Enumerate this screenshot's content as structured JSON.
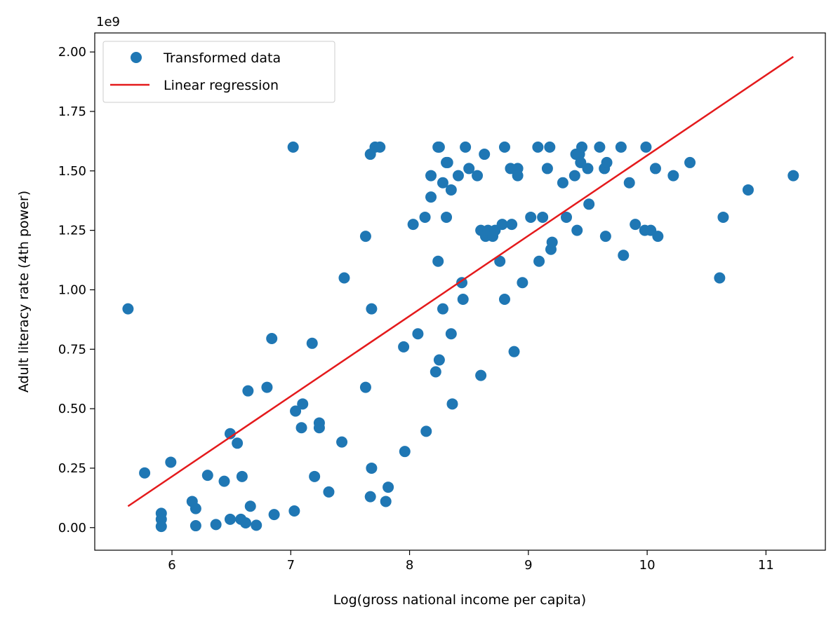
{
  "chart_data": {
    "type": "scatter",
    "title": "",
    "xlabel": "Log(gross national income per capita)",
    "ylabel": "Adult literacy rate (4th power)",
    "y_offset_text": "1e9",
    "xlim": [
      5.35,
      11.5
    ],
    "ylim": [
      -0.095,
      2.08
    ],
    "y_multiplier": 1000000000,
    "x_ticks": [
      6,
      7,
      8,
      9,
      10,
      11
    ],
    "x_tick_labels": [
      "6",
      "7",
      "8",
      "9",
      "10",
      "11"
    ],
    "y_ticks": [
      0.0,
      0.25,
      0.5,
      0.75,
      1.0,
      1.25,
      1.5,
      1.75,
      2.0
    ],
    "y_tick_labels": [
      "0.00",
      "0.25",
      "0.50",
      "0.75",
      "1.00",
      "1.25",
      "1.50",
      "1.75",
      "2.00"
    ],
    "grid": false,
    "legend_position": "top-left",
    "series": [
      {
        "name": "Transformed data",
        "kind": "scatter",
        "color": "#1f77b4",
        "points": [
          [
            5.63,
            0.92
          ],
          [
            5.77,
            0.23
          ],
          [
            5.91,
            0.06
          ],
          [
            5.91,
            0.035
          ],
          [
            5.91,
            0.005
          ],
          [
            5.99,
            0.275
          ],
          [
            6.17,
            0.11
          ],
          [
            6.2,
            0.08
          ],
          [
            6.2,
            0.008
          ],
          [
            6.3,
            0.22
          ],
          [
            6.37,
            0.013
          ],
          [
            6.44,
            0.195
          ],
          [
            6.49,
            0.395
          ],
          [
            6.49,
            0.035
          ],
          [
            6.55,
            0.355
          ],
          [
            6.58,
            0.035
          ],
          [
            6.59,
            0.215
          ],
          [
            6.62,
            0.02
          ],
          [
            6.64,
            0.575
          ],
          [
            6.66,
            0.09
          ],
          [
            6.71,
            0.01
          ],
          [
            6.8,
            0.59
          ],
          [
            6.84,
            0.795
          ],
          [
            6.86,
            0.055
          ],
          [
            7.02,
            1.6
          ],
          [
            7.03,
            0.07
          ],
          [
            7.04,
            0.49
          ],
          [
            7.09,
            0.42
          ],
          [
            7.1,
            0.52
          ],
          [
            7.18,
            0.775
          ],
          [
            7.2,
            0.215
          ],
          [
            7.24,
            0.44
          ],
          [
            7.24,
            0.42
          ],
          [
            7.32,
            0.15
          ],
          [
            7.43,
            0.36
          ],
          [
            7.45,
            1.05
          ],
          [
            7.63,
            1.225
          ],
          [
            7.63,
            0.59
          ],
          [
            7.67,
            1.57
          ],
          [
            7.67,
            0.13
          ],
          [
            7.68,
            0.92
          ],
          [
            7.68,
            0.25
          ],
          [
            7.71,
            1.6
          ],
          [
            7.75,
            1.6
          ],
          [
            7.8,
            0.11
          ],
          [
            7.82,
            0.17
          ],
          [
            7.95,
            0.76
          ],
          [
            7.96,
            0.32
          ],
          [
            8.03,
            1.275
          ],
          [
            8.07,
            0.815
          ],
          [
            8.13,
            1.305
          ],
          [
            8.14,
            0.405
          ],
          [
            8.18,
            1.48
          ],
          [
            8.18,
            1.39
          ],
          [
            8.22,
            0.655
          ],
          [
            8.24,
            1.12
          ],
          [
            8.24,
            1.6
          ],
          [
            8.25,
            1.6
          ],
          [
            8.25,
            0.705
          ],
          [
            8.28,
            1.45
          ],
          [
            8.28,
            0.92
          ],
          [
            8.31,
            1.535
          ],
          [
            8.31,
            1.305
          ],
          [
            8.32,
            1.535
          ],
          [
            8.35,
            1.42
          ],
          [
            8.35,
            0.815
          ],
          [
            8.36,
            0.52
          ],
          [
            8.41,
            1.48
          ],
          [
            8.44,
            1.03
          ],
          [
            8.45,
            0.96
          ],
          [
            8.47,
            1.6
          ],
          [
            8.5,
            1.51
          ],
          [
            8.57,
            1.48
          ],
          [
            8.6,
            1.25
          ],
          [
            8.6,
            0.64
          ],
          [
            8.63,
            1.57
          ],
          [
            8.64,
            1.225
          ],
          [
            8.66,
            1.25
          ],
          [
            8.7,
            1.225
          ],
          [
            8.72,
            1.25
          ],
          [
            8.76,
            1.12
          ],
          [
            8.78,
            1.275
          ],
          [
            8.8,
            1.6
          ],
          [
            8.8,
            0.96
          ],
          [
            8.85,
            1.51
          ],
          [
            8.86,
            1.275
          ],
          [
            8.88,
            0.74
          ],
          [
            8.91,
            1.51
          ],
          [
            8.91,
            1.48
          ],
          [
            8.95,
            1.03
          ],
          [
            9.02,
            1.305
          ],
          [
            9.08,
            1.6
          ],
          [
            9.09,
            1.12
          ],
          [
            9.12,
            1.305
          ],
          [
            9.16,
            1.51
          ],
          [
            9.18,
            1.6
          ],
          [
            9.19,
            1.17
          ],
          [
            9.2,
            1.2
          ],
          [
            9.29,
            1.45
          ],
          [
            9.32,
            1.305
          ],
          [
            9.39,
            1.48
          ],
          [
            9.4,
            1.57
          ],
          [
            9.41,
            1.25
          ],
          [
            9.43,
            1.57
          ],
          [
            9.44,
            1.535
          ],
          [
            9.45,
            1.6
          ],
          [
            9.5,
            1.51
          ],
          [
            9.51,
            1.36
          ],
          [
            9.6,
            1.6
          ],
          [
            9.64,
            1.51
          ],
          [
            9.65,
            1.225
          ],
          [
            9.66,
            1.535
          ],
          [
            9.78,
            1.6
          ],
          [
            9.8,
            1.145
          ],
          [
            9.85,
            1.45
          ],
          [
            9.9,
            1.275
          ],
          [
            9.98,
            1.25
          ],
          [
            9.99,
            1.6
          ],
          [
            10.03,
            1.25
          ],
          [
            10.07,
            1.51
          ],
          [
            10.09,
            1.225
          ],
          [
            10.22,
            1.48
          ],
          [
            10.36,
            1.535
          ],
          [
            10.61,
            1.05
          ],
          [
            10.64,
            1.305
          ],
          [
            10.85,
            1.42
          ],
          [
            11.23,
            1.48
          ]
        ]
      },
      {
        "name": "Linear regression",
        "kind": "line",
        "color": "#e41a1c",
        "points": [
          [
            5.63,
            0.09
          ],
          [
            11.23,
            1.98
          ]
        ]
      }
    ]
  }
}
